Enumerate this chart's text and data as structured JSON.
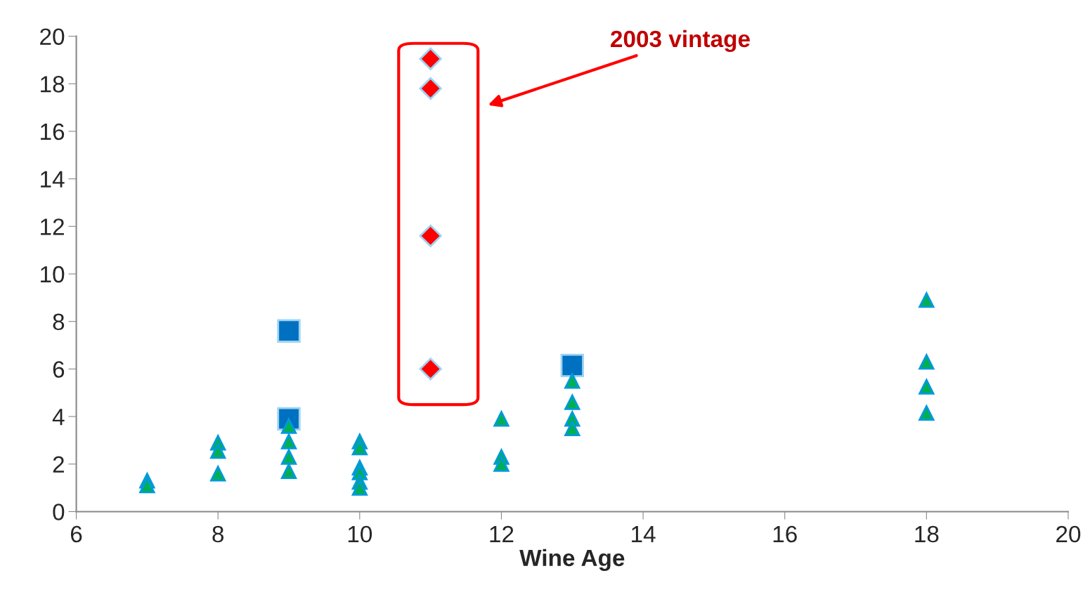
{
  "chart_data": {
    "type": "scatter",
    "xlabel": "Wine Age",
    "annotations": [
      "2003 vintage"
    ],
    "xlim": [
      6,
      20
    ],
    "xticks": [
      6,
      8,
      10,
      12,
      14,
      16,
      18,
      20
    ],
    "ylim": [
      0,
      20
    ],
    "yticks": [
      0,
      2,
      4,
      6,
      8,
      10,
      12,
      14,
      16,
      18,
      20
    ],
    "grid": false,
    "legend": false,
    "series": [
      {
        "color": "#00b050",
        "marker": "triangle",
        "x": [
          7,
          7,
          8,
          8,
          8,
          9,
          9,
          9,
          9,
          10,
          10,
          10,
          10,
          10,
          10,
          12,
          12,
          12,
          13,
          13,
          13,
          13,
          18,
          18,
          18,
          18
        ],
        "values": [
          1.3,
          1.1,
          2.9,
          2.55,
          1.6,
          3.6,
          2.95,
          2.3,
          1.7,
          2.95,
          2.7,
          1.85,
          1.65,
          1.25,
          1.0,
          3.9,
          2.3,
          2.0,
          5.5,
          4.6,
          3.9,
          3.5,
          8.9,
          6.3,
          5.25,
          4.15
        ]
      },
      {
        "color": "#0070c0",
        "marker": "square",
        "x": [
          9,
          9,
          13
        ],
        "values": [
          7.6,
          3.9,
          6.15
        ]
      },
      {
        "color": "#ff0000",
        "marker": "diamond",
        "x": [
          11,
          11,
          11,
          11
        ],
        "values": [
          19.05,
          17.8,
          11.6,
          6.0
        ]
      }
    ]
  }
}
